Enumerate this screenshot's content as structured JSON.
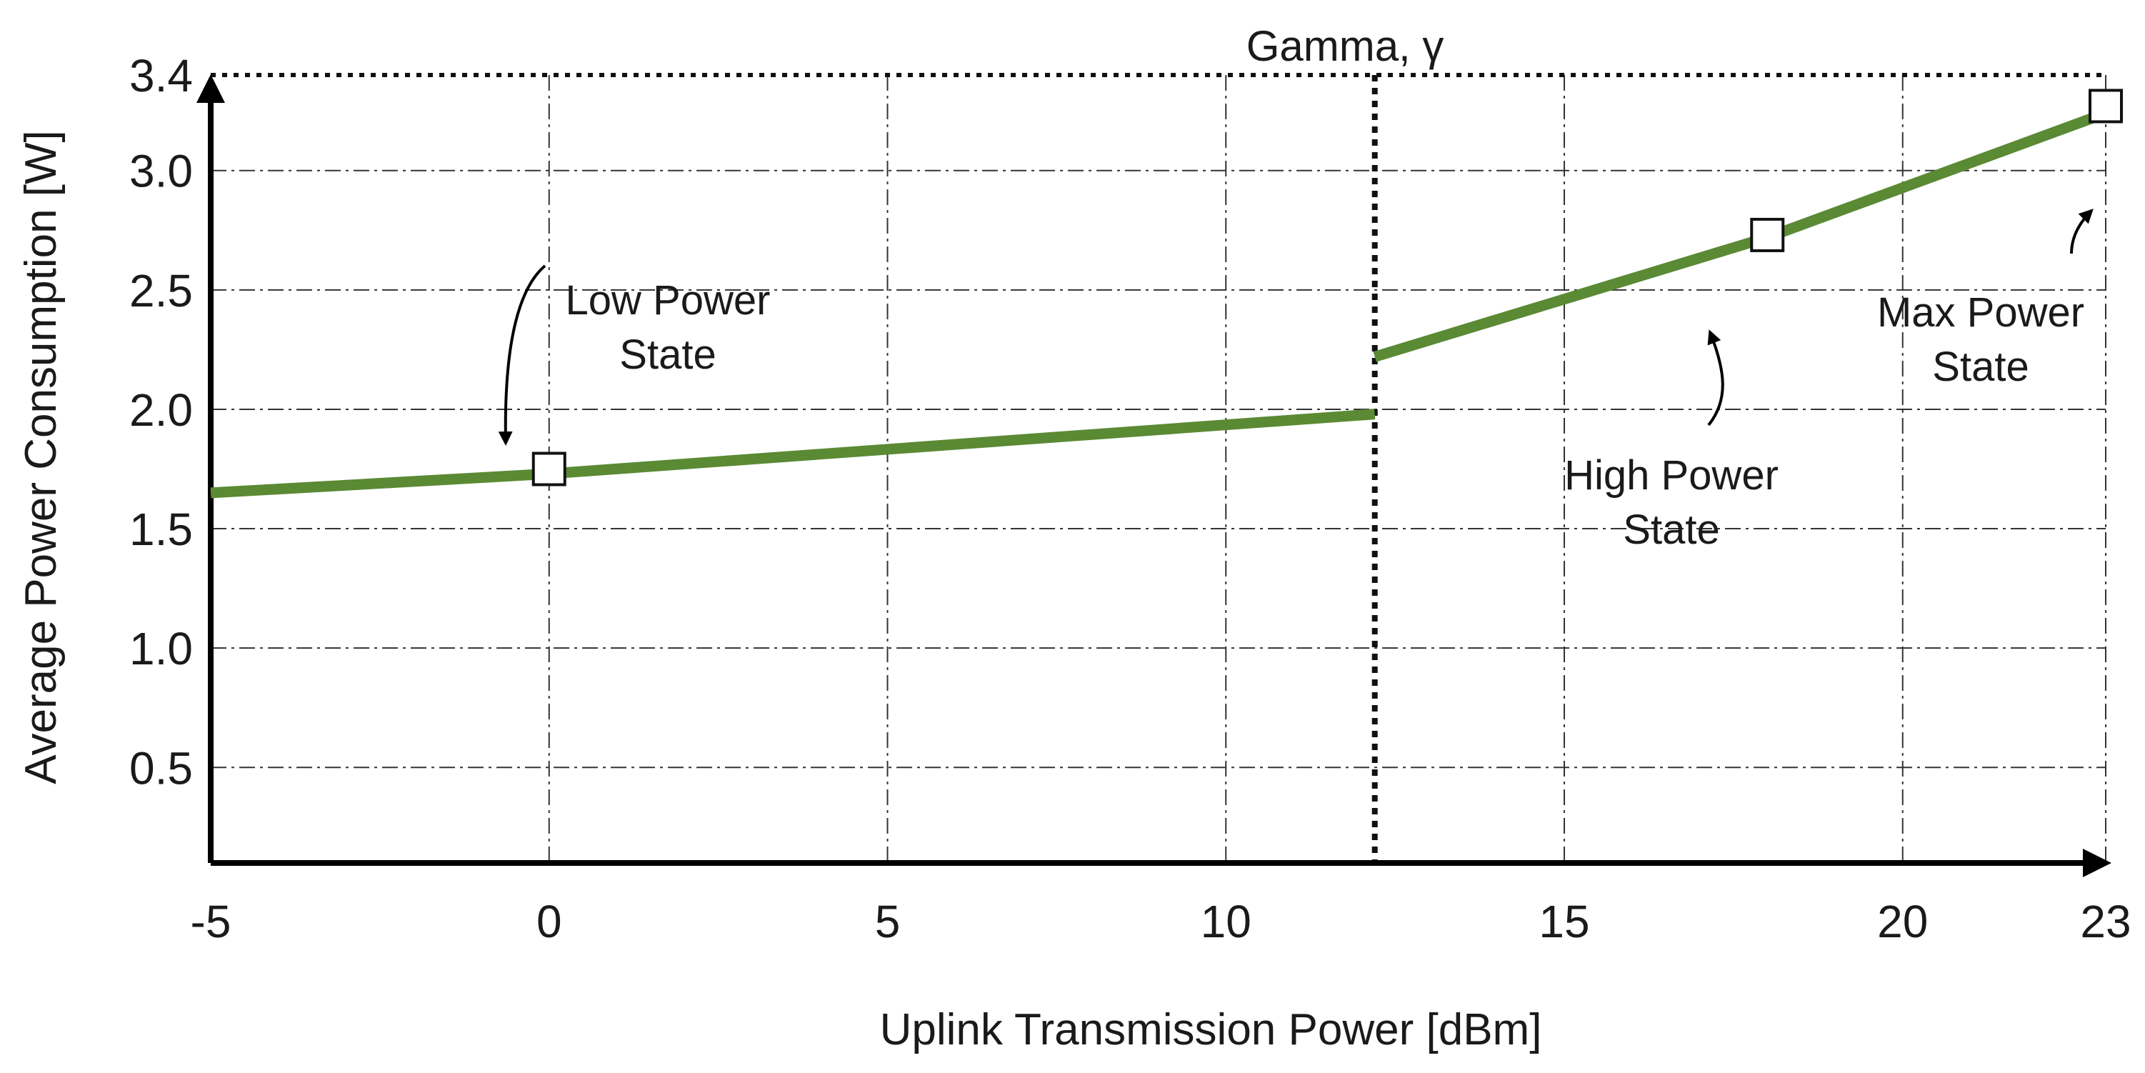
{
  "chart_data": {
    "type": "line",
    "xlabel": "Uplink Transmission Power [dBm]",
    "ylabel": "Average Power Consumption [W]",
    "xlim": [
      -5,
      23
    ],
    "ylim": [
      0.1,
      3.4
    ],
    "x_ticks": [
      -5,
      0,
      5,
      10,
      15,
      20,
      23
    ],
    "x_tick_labels": [
      "-5",
      "0",
      "5",
      "10",
      "15",
      "20",
      "23"
    ],
    "y_ticks": [
      0.5,
      1.0,
      1.5,
      2.0,
      2.5,
      3.0,
      3.4
    ],
    "y_tick_labels": [
      "0.5",
      "1.0",
      "1.5",
      "2.0",
      "2.5",
      "3.0",
      "3.4"
    ],
    "x_gridlines": [
      0,
      5,
      10,
      15,
      20
    ],
    "y_gridlines": [
      0.5,
      1.0,
      1.5,
      2.0,
      2.5,
      3.0
    ],
    "grid": true,
    "line_color": "#5a8a34",
    "marker_color": "#ffffff",
    "series": [
      {
        "segment": "low",
        "x": [
          -5,
          0,
          12.2
        ],
        "y": [
          1.65,
          1.73,
          1.98
        ]
      },
      {
        "segment": "high",
        "x": [
          12.2,
          18,
          23
        ],
        "y": [
          2.22,
          2.72,
          3.24
        ]
      }
    ],
    "markers": [
      {
        "x": 0,
        "y": 1.75
      },
      {
        "x": 18,
        "y": 2.73
      },
      {
        "x": 23,
        "y": 3.27
      }
    ],
    "threshold": {
      "x": 12.2,
      "label": "Gamma, γ"
    },
    "annotations": [
      {
        "lines": [
          "Low Power",
          "State"
        ],
        "target": {
          "x": 0,
          "y": 1.75
        }
      },
      {
        "lines": [
          "High Power",
          "State"
        ],
        "target": {
          "x": 18,
          "y": 2.73
        }
      },
      {
        "lines": [
          "Max Power",
          "State"
        ],
        "target": {
          "x": 23,
          "y": 3.27
        }
      }
    ]
  }
}
